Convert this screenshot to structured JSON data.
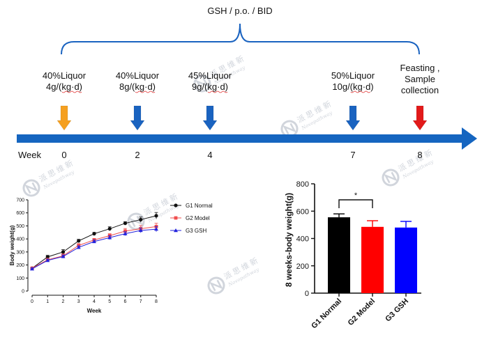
{
  "timeline": {
    "header": "GSH / p.o. / BID",
    "week_label": "Week",
    "colors": {
      "bar": "#1565c0",
      "orange": "#f5a020",
      "blue": "#1a63c0",
      "red": "#e21a1a"
    },
    "events": [
      {
        "week": "0",
        "lines": [
          "40%Liquor",
          "4g/(kg·d)"
        ],
        "arrow_color": "orange"
      },
      {
        "week": "2",
        "lines": [
          "40%Liquor",
          "8g/(kg·d)"
        ],
        "arrow_color": "blue"
      },
      {
        "week": "4",
        "lines": [
          "45%Liquor",
          "9g/(kg·d)"
        ],
        "arrow_color": "blue"
      },
      {
        "week": "7",
        "lines": [
          "50%Liquor",
          "10g/(kg·d)"
        ],
        "arrow_color": "blue"
      },
      {
        "week": "8",
        "lines": [
          "Feasting ,",
          "Sample",
          "collection"
        ],
        "arrow_color": "red"
      }
    ]
  },
  "watermark": {
    "cn": "派思维新",
    "en": "Novopathway"
  },
  "chart_data": [
    {
      "type": "line",
      "xlabel": "Week",
      "ylabel": "Body weight(g)",
      "x": [
        0,
        1,
        2,
        3,
        4,
        5,
        6,
        7,
        8
      ],
      "xticks": [
        "0",
        "1",
        "2",
        "3",
        "4",
        "5",
        "6",
        "7",
        "8"
      ],
      "ylim": [
        0,
        700
      ],
      "yticks": [
        "0",
        "100",
        "200",
        "300",
        "400",
        "500",
        "600",
        "700"
      ],
      "legend": "right",
      "series": [
        {
          "name": "G1 Normal",
          "color": "#111111",
          "marker": "circle",
          "values": [
            175,
            262,
            300,
            385,
            440,
            478,
            520,
            548,
            578
          ],
          "errors": [
            8,
            12,
            18,
            12,
            10,
            15,
            12,
            20,
            25
          ]
        },
        {
          "name": "G2  Model",
          "color": "#f04e4e",
          "marker": "square",
          "values": [
            175,
            240,
            270,
            350,
            392,
            425,
            460,
            478,
            495
          ],
          "errors": [
            8,
            12,
            15,
            14,
            12,
            15,
            20,
            25,
            25
          ]
        },
        {
          "name": "G3  GSH",
          "color": "#2222dd",
          "marker": "triangle",
          "values": [
            170,
            235,
            265,
            335,
            380,
            410,
            440,
            465,
            475
          ],
          "errors": [
            8,
            10,
            12,
            12,
            12,
            15,
            15,
            18,
            20
          ]
        }
      ]
    },
    {
      "type": "bar",
      "ylabel": "8 weeks-body weight(g)",
      "categories": [
        "G1 Normal",
        "G2 Model",
        "G3 GSH"
      ],
      "values": [
        555,
        485,
        480
      ],
      "errors": [
        25,
        45,
        45
      ],
      "colors": [
        "#000000",
        "#ff0000",
        "#0000ff"
      ],
      "ylim": [
        0,
        800
      ],
      "yticks": [
        "0",
        "200",
        "400",
        "600",
        "800"
      ],
      "significance": {
        "between": [
          0,
          1
        ],
        "label": "*"
      }
    }
  ]
}
